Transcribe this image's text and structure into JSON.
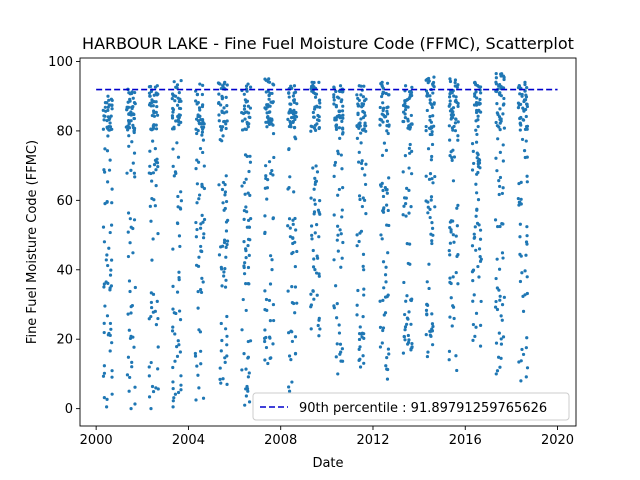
{
  "chart_data": {
    "type": "scatter",
    "title": "HARBOUR LAKE - Fine Fuel Moisture Code (FFMC), Scatterplot",
    "xlabel": "Date",
    "ylabel": "Fine Fuel Moisture Code (FFMC)",
    "xlim": [
      1999.3,
      2020.8
    ],
    "ylim": [
      -5,
      101
    ],
    "xticks": [
      2000,
      2004,
      2008,
      2012,
      2016,
      2020
    ],
    "yticks": [
      0,
      20,
      40,
      60,
      80,
      100
    ],
    "grid": false,
    "legend": {
      "placement": "lower-right",
      "entries": [
        {
          "label": "90th percentile : 91.89791259765626",
          "style": "dashed",
          "color": "#0000cc"
        }
      ]
    },
    "point_color": "#1f77b4",
    "reference_line": {
      "y": 91.89791259765626,
      "x_start": 2000,
      "x_end": 2020,
      "color": "#0000cc"
    },
    "season_clusters": [
      {
        "year": 2000,
        "x_range": [
          2000.3,
          2000.7
        ],
        "y_min": 0.5,
        "y_max": 90
      },
      {
        "year": 2001,
        "x_range": [
          2001.3,
          2001.7
        ],
        "y_min": 0,
        "y_max": 92
      },
      {
        "year": 2002,
        "x_range": [
          2002.3,
          2002.7
        ],
        "y_min": 0,
        "y_max": 93
      },
      {
        "year": 2003,
        "x_range": [
          2003.3,
          2003.7
        ],
        "y_min": 0.5,
        "y_max": 94.5
      },
      {
        "year": 2004,
        "x_range": [
          2004.3,
          2004.7
        ],
        "y_min": 2.5,
        "y_max": 93.5
      },
      {
        "year": 2005,
        "x_range": [
          2005.3,
          2005.7
        ],
        "y_min": 7,
        "y_max": 94
      },
      {
        "year": 2006,
        "x_range": [
          2006.3,
          2006.7
        ],
        "y_min": 1,
        "y_max": 93.5
      },
      {
        "year": 2007,
        "x_range": [
          2007.3,
          2007.7
        ],
        "y_min": 13,
        "y_max": 95
      },
      {
        "year": 2008,
        "x_range": [
          2008.3,
          2008.7
        ],
        "y_min": 5,
        "y_max": 93
      },
      {
        "year": 2009,
        "x_range": [
          2009.3,
          2009.7
        ],
        "y_min": 21,
        "y_max": 94
      },
      {
        "year": 2010,
        "x_range": [
          2010.3,
          2010.7
        ],
        "y_min": 10,
        "y_max": 93
      },
      {
        "year": 2011,
        "x_range": [
          2011.3,
          2011.7
        ],
        "y_min": 12,
        "y_max": 93
      },
      {
        "year": 2012,
        "x_range": [
          2012.3,
          2012.7
        ],
        "y_min": 8.5,
        "y_max": 94
      },
      {
        "year": 2013,
        "x_range": [
          2013.3,
          2013.7
        ],
        "y_min": 16,
        "y_max": 93
      },
      {
        "year": 2014,
        "x_range": [
          2014.3,
          2014.7
        ],
        "y_min": 15,
        "y_max": 95.5
      },
      {
        "year": 2015,
        "x_range": [
          2015.3,
          2015.7
        ],
        "y_min": 11,
        "y_max": 95
      },
      {
        "year": 2016,
        "x_range": [
          2016.3,
          2016.7
        ],
        "y_min": 18,
        "y_max": 94
      },
      {
        "year": 2017,
        "x_range": [
          2017.3,
          2017.7
        ],
        "y_min": 10,
        "y_max": 96.5
      },
      {
        "year": 2018,
        "x_range": [
          2018.3,
          2018.7
        ],
        "y_min": 8,
        "y_max": 94
      }
    ]
  }
}
